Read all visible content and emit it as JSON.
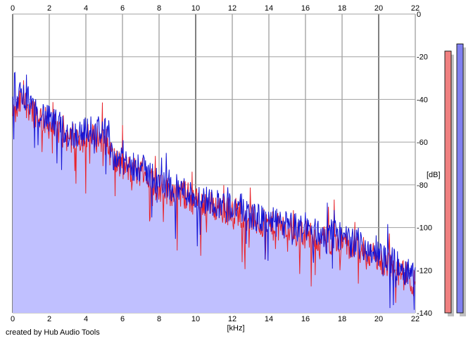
{
  "chart_data": {
    "type": "area",
    "xlabel": "[kHz]",
    "ylabel": "[dB]",
    "xlim": [
      0,
      22
    ],
    "ylim": [
      -140,
      0
    ],
    "x_ticks": [
      0,
      2,
      4,
      6,
      8,
      10,
      12,
      14,
      16,
      18,
      20,
      22
    ],
    "y_ticks": [
      0,
      -20,
      -40,
      -60,
      -80,
      -100,
      -120,
      -140
    ],
    "grid": true,
    "series": [
      {
        "color": "#e8242b",
        "x": [
          0,
          0.5,
          1,
          1.5,
          2,
          2.5,
          3,
          3.5,
          4,
          4.5,
          5,
          5.5,
          6,
          6.5,
          7,
          7.5,
          8,
          8.5,
          9,
          9.5,
          10,
          10.5,
          11,
          11.5,
          12,
          12.5,
          13,
          13.5,
          14,
          14.5,
          15,
          15.5,
          16,
          16.5,
          17,
          17.5,
          18,
          18.5,
          19,
          19.5,
          20,
          20.5,
          21,
          21.5,
          22
        ],
        "values": [
          -50,
          -40,
          -44,
          -48,
          -52,
          -55,
          -58,
          -58,
          -58,
          -58,
          -58,
          -68,
          -72,
          -73,
          -74,
          -77,
          -81,
          -83,
          -84,
          -85,
          -88,
          -89,
          -90,
          -92,
          -92,
          -93,
          -96,
          -98,
          -99,
          -100,
          -101,
          -103,
          -103,
          -105,
          -106,
          -106,
          -107,
          -110,
          -111,
          -112,
          -116,
          -117,
          -121,
          -123,
          -127
        ]
      },
      {
        "color": "#1414d4",
        "x": [
          0,
          0.5,
          1,
          1.5,
          2,
          2.5,
          3,
          3.5,
          4,
          4.5,
          5,
          5.5,
          6,
          6.5,
          7,
          7.5,
          8,
          8.5,
          9,
          9.5,
          10,
          10.5,
          11,
          11.5,
          12,
          12.5,
          13,
          13.5,
          14,
          14.5,
          15,
          15.5,
          16,
          16.5,
          17,
          17.5,
          18,
          18.5,
          19,
          19.5,
          20,
          20.5,
          21,
          21.5,
          22
        ],
        "values": [
          -45,
          -36,
          -42,
          -46,
          -50,
          -52,
          -56,
          -56,
          -55,
          -54,
          -54,
          -66,
          -70,
          -71,
          -72,
          -75,
          -79,
          -81,
          -82,
          -83,
          -86,
          -87,
          -88,
          -89,
          -90,
          -91,
          -94,
          -96,
          -97,
          -98,
          -99,
          -100,
          -101,
          -102,
          -103,
          -103,
          -104,
          -107,
          -108,
          -110,
          -113,
          -114,
          -118,
          -120,
          -124
        ]
      }
    ],
    "fill_color": "#c0c0ff",
    "meters": [
      {
        "color": "#f08080",
        "level": 0.876
      },
      {
        "color": "#8080f0",
        "level": 0.9
      }
    ]
  },
  "footer": {
    "credit": "created by Hub Audio Tools"
  }
}
